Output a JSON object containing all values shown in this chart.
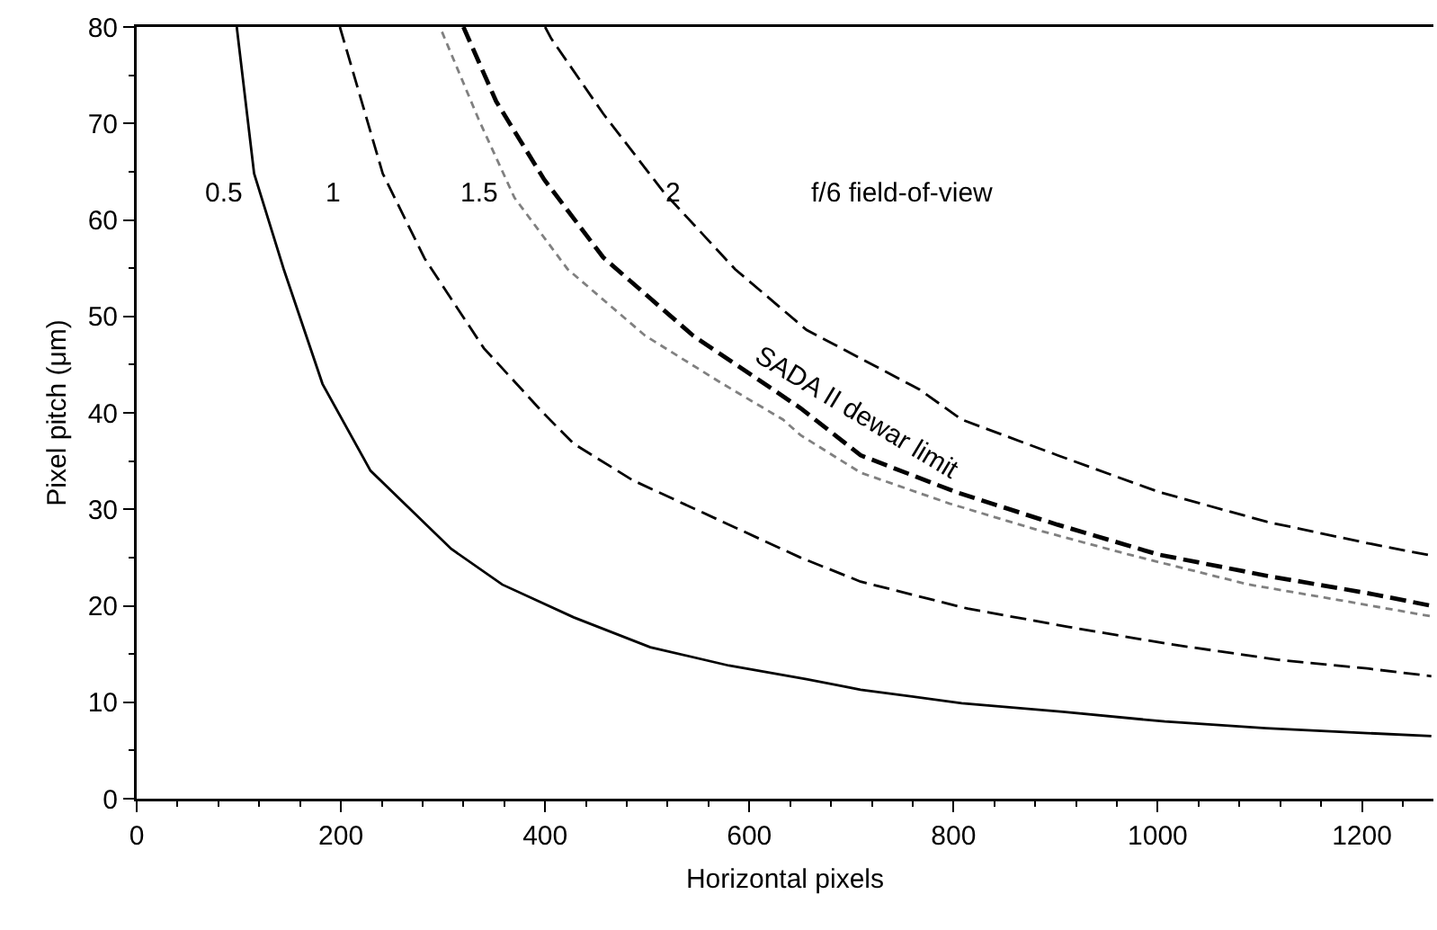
{
  "chart_data": {
    "type": "line",
    "xlabel": "Horizontal pixels",
    "ylabel": "Pixel pitch (μm)",
    "xlim": [
      0,
      1270
    ],
    "ylim": [
      0,
      80
    ],
    "xticks": [
      0,
      200,
      400,
      600,
      800,
      1000,
      1200
    ],
    "yticks": [
      0,
      10,
      20,
      30,
      40,
      50,
      60,
      70,
      80
    ],
    "grid": false,
    "marker": "none",
    "series": [
      {
        "color": "#000000",
        "line_style": "solid",
        "x": [
          98,
          115,
          144,
          182,
          229,
          308,
          358,
          428,
          503,
          580,
          656,
          709,
          808,
          907,
          1007,
          1106,
          1205,
          1268
        ],
        "values": [
          80,
          64.8,
          54.9,
          43,
          34,
          25.9,
          22.2,
          18.8,
          15.7,
          13.8,
          12.4,
          11.3,
          9.9,
          9,
          8,
          7.3,
          6.8,
          6.5
        ]
      },
      {
        "color": "#000000",
        "line_style": "dashed",
        "x": [
          199,
          241,
          282,
          340,
          399,
          428,
          486,
          574,
          650,
          709,
          814,
          913,
          1013,
          1118,
          1205,
          1268
        ],
        "values": [
          80,
          64.8,
          56,
          46.7,
          39.9,
          36.8,
          33,
          28.7,
          25,
          22.5,
          19.7,
          17.8,
          16,
          14.4,
          13.5,
          12.7
        ]
      },
      {
        "color": "#808080",
        "line_style": "dotted",
        "x": [
          299,
          335,
          370,
          422,
          498,
          574,
          633,
          650,
          709,
          796,
          884,
          972,
          1089,
          1177,
          1268
        ],
        "values": [
          79.5,
          70.4,
          62.3,
          54.9,
          48,
          43,
          39.3,
          37.7,
          33.8,
          30.6,
          27.8,
          25.3,
          22.2,
          20.6,
          18.9
        ]
      },
      {
        "color": "#000000",
        "line_style": "dashed",
        "x": [
          320,
          352,
          399,
          457,
          545,
          650,
          709,
          802,
          902,
          1001,
          1107,
          1206,
          1268
        ],
        "values": [
          80,
          72.3,
          64.2,
          56.1,
          48,
          40.5,
          35.6,
          31.8,
          28.4,
          25.3,
          23.1,
          21.3,
          20
        ]
      },
      {
        "color": "#000000",
        "line_style": "dashed",
        "x": [
          400,
          406,
          457,
          516,
          586,
          656,
          767,
          808,
          902,
          1001,
          1107,
          1205,
          1268
        ],
        "values": [
          80,
          78.8,
          71,
          62.9,
          54.9,
          48.6,
          42.4,
          39.3,
          35.6,
          31.8,
          28.7,
          26.5,
          25.2
        ]
      }
    ],
    "annotations": [
      "0.5",
      "1",
      "1.5",
      "2",
      "f/6 field-of-view",
      "SADA II dewar limit"
    ]
  }
}
